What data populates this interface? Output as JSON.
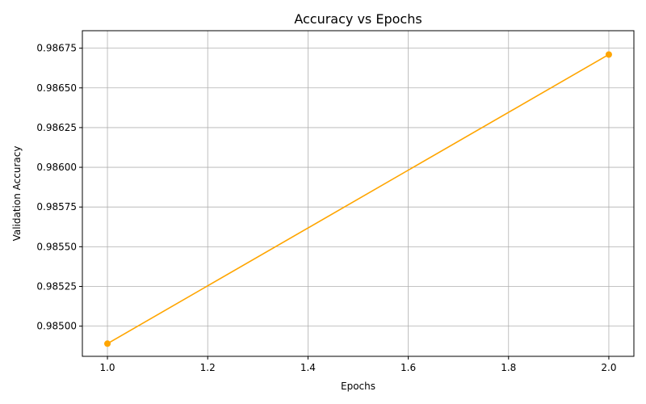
{
  "chart_data": {
    "type": "line",
    "title": "Accuracy vs Epochs",
    "xlabel": "Epochs",
    "ylabel": "Validation Accuracy",
    "xlim": [
      0.95,
      2.05
    ],
    "ylim": [
      0.98481,
      0.98686
    ],
    "x_ticks": [
      1.0,
      1.2,
      1.4,
      1.6,
      1.8,
      2.0
    ],
    "x_tick_labels": [
      "1.0",
      "1.2",
      "1.4",
      "1.6",
      "1.8",
      "2.0"
    ],
    "y_ticks": [
      0.985,
      0.98525,
      0.9855,
      0.98575,
      0.986,
      0.98625,
      0.9865,
      0.98675
    ],
    "y_tick_labels": [
      "0.98500",
      "0.98525",
      "0.98550",
      "0.98575",
      "0.98600",
      "0.98625",
      "0.98650",
      "0.98675"
    ],
    "grid": true,
    "series": [
      {
        "color": "#ffa500",
        "marker": "circle",
        "x": [
          1.0,
          2.0
        ],
        "y": [
          0.98489,
          0.98671
        ]
      }
    ]
  }
}
